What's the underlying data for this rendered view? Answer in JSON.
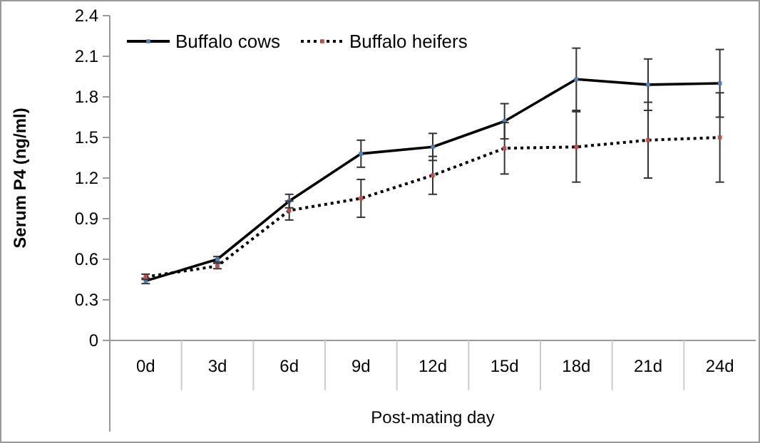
{
  "chart_data": {
    "type": "line",
    "xlabel": "Post-mating day",
    "ylabel": "Serum P4 (ng/ml)",
    "categories": [
      "0d",
      "3d",
      "6d",
      "9d",
      "12d",
      "15d",
      "18d",
      "21d",
      "24d"
    ],
    "series": [
      {
        "name": "Buffalo cows",
        "color": "#4f81bd",
        "line_style": "solid",
        "values": [
          0.44,
          0.6,
          1.03,
          1.38,
          1.43,
          1.62,
          1.93,
          1.89,
          1.9
        ],
        "errors": [
          0.02,
          0.02,
          0.05,
          0.1,
          0.1,
          0.13,
          0.23,
          0.19,
          0.25
        ]
      },
      {
        "name": "Buffalo heifers",
        "color": "#c0504d",
        "line_style": "dotted",
        "values": [
          0.47,
          0.55,
          0.96,
          1.05,
          1.22,
          1.42,
          1.43,
          1.48,
          1.5
        ],
        "errors": [
          0.02,
          0.02,
          0.07,
          0.14,
          0.14,
          0.19,
          0.26,
          0.28,
          0.33
        ]
      }
    ],
    "ylim": [
      0,
      2.4
    ],
    "yticks": [
      0,
      0.3,
      0.6,
      0.9,
      1.2,
      1.5,
      1.8,
      2.1,
      2.4
    ],
    "grid": false,
    "legend": "top left",
    "marker": "square"
  }
}
